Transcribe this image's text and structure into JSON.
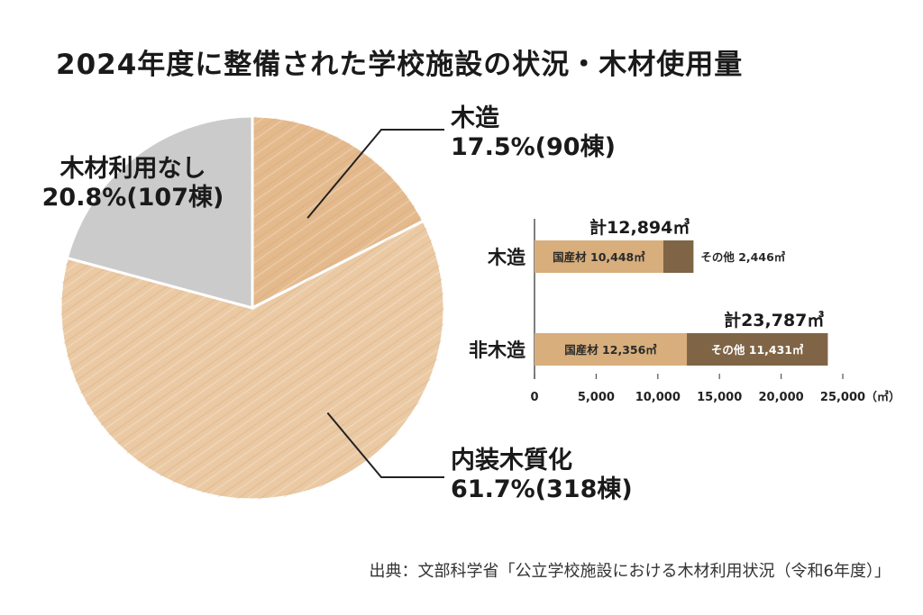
{
  "title": "2024年度に整備された学校施設の状況・木材使用量",
  "source": "出典：文部科学省「公立学校施設における木材利用状況（令和6年度）」",
  "colors": {
    "wood_light": "#eac9a3",
    "wood_mid": "#e4b98c",
    "gray": "#cbcbcb",
    "bar_domestic": "#d7ae7c",
    "bar_other": "#7f6446"
  },
  "chart_data": [
    {
      "type": "pie",
      "slices": [
        {
          "label": "木造",
          "value_text": "17.5%(90棟)",
          "percent": 17.5,
          "count": 90,
          "color": "#e4b98c"
        },
        {
          "label": "内装木質化",
          "value_text": "61.7%(318棟)",
          "percent": 61.7,
          "count": 318,
          "color": "#eac9a3"
        },
        {
          "label": "木材利用なし",
          "value_text": "20.8%(107棟)",
          "percent": 20.8,
          "count": 107,
          "color": "#cbcbcb"
        }
      ]
    },
    {
      "type": "bar",
      "orientation": "horizontal",
      "stacked": true,
      "categories": [
        "木造",
        "非木造"
      ],
      "series": [
        {
          "name": "国産材",
          "values": [
            10448,
            12356
          ],
          "labels": [
            "国産材 10,448㎥",
            "国産材 12,356㎥"
          ],
          "color": "#d7ae7c"
        },
        {
          "name": "その他",
          "values": [
            2446,
            11431
          ],
          "labels": [
            "その他 2,446㎥",
            "その他 11,431㎥"
          ],
          "color": "#7f6446"
        }
      ],
      "totals": [
        "計12,894㎥",
        "計23,787㎥"
      ],
      "xlim": [
        0,
        25000
      ],
      "xticks": [
        "0",
        "5,000",
        "10,000",
        "15,000",
        "20,000",
        "25,000"
      ],
      "xticks_values": [
        0,
        5000,
        10000,
        15000,
        20000,
        25000
      ],
      "unit": "（㎥）"
    }
  ]
}
